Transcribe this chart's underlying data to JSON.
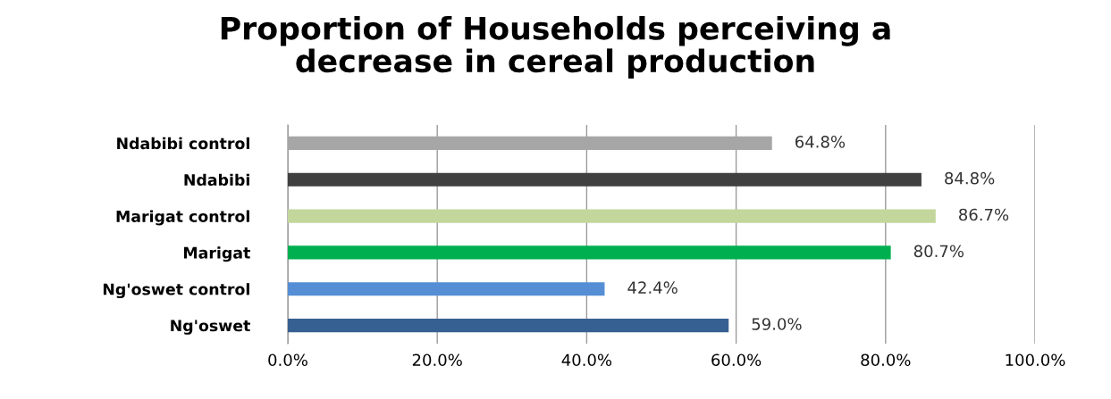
{
  "chart_data": {
    "type": "bar",
    "title": "Proportion of Households perceiving a\ndecrease in cereal production",
    "orientation": "horizontal",
    "categories": [
      "Ndabibi control",
      "Ndabibi",
      "Marigat control",
      "Marigat",
      "Ng'oswet control",
      "Ng'oswet"
    ],
    "values": [
      64.8,
      84.8,
      86.7,
      80.7,
      42.4,
      59.0
    ],
    "colors": [
      "#a6a6a6",
      "#404040",
      "#c3d69b",
      "#00b050",
      "#558ed5",
      "#376092"
    ],
    "value_labels": [
      "64.8%",
      "84.8%",
      "86.7%",
      "80.7%",
      "42.4%",
      "59.0%"
    ],
    "xlim": [
      0,
      100
    ],
    "xticks": [
      {
        "value": 0,
        "label": "0.0%"
      },
      {
        "value": 20,
        "label": "20.0%"
      },
      {
        "value": 40,
        "label": "40.0%"
      },
      {
        "value": 60,
        "label": "60.0%"
      },
      {
        "value": 80,
        "label": "80.0%"
      },
      {
        "value": 100,
        "label": "100.0%"
      }
    ],
    "grid": "x",
    "legend": false
  }
}
